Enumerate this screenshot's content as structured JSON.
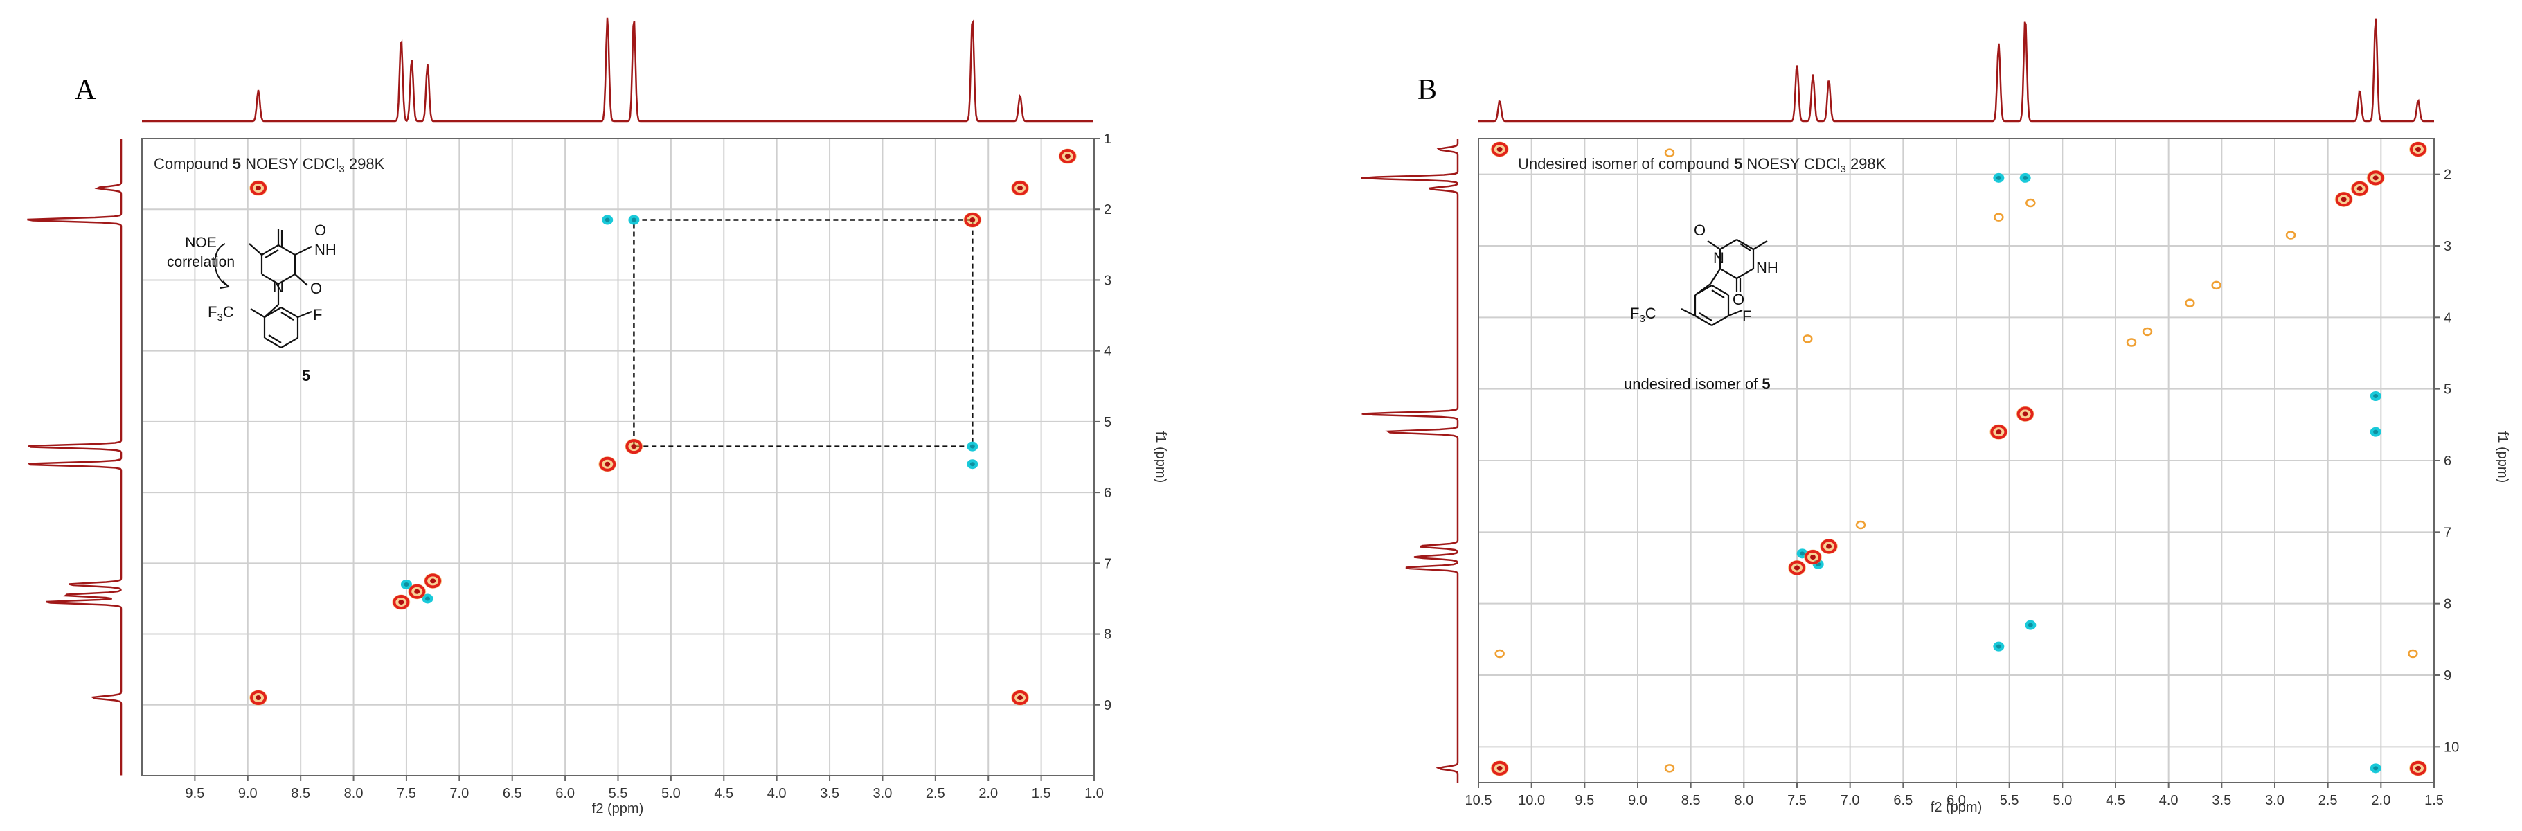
{
  "chart_data": [
    {
      "panel": "A",
      "type": "scatter",
      "title_prefix": "Compound ",
      "title_bold": "5",
      "title_suffix": " NOESY CDCl",
      "title_sub": "3",
      "title_tail": " 298K",
      "xlabel": "f2 (ppm)",
      "ylabel": "f1 (ppm)",
      "xlim": [
        10.0,
        1.0
      ],
      "ylim": [
        1.0,
        10.0
      ],
      "xticks": [
        "9.5",
        "9.0",
        "8.5",
        "8.0",
        "7.5",
        "7.0",
        "6.5",
        "6.0",
        "5.5",
        "5.0",
        "4.5",
        "4.0",
        "3.5",
        "3.0",
        "2.5",
        "2.0",
        "1.5",
        "1.0"
      ],
      "yticks": [
        "1",
        "2",
        "3",
        "4",
        "5",
        "6",
        "7",
        "8",
        "9"
      ],
      "structure_label": "5",
      "noe_label_1": "NOE",
      "noe_label_2": "correlation",
      "diagonal_peaks": [
        [
          8.9,
          1.7
        ],
        [
          8.9,
          8.9
        ],
        [
          1.7,
          1.7
        ],
        [
          1.7,
          8.9
        ],
        [
          1.25,
          1.25
        ],
        [
          2.15,
          2.15
        ],
        [
          5.35,
          5.35
        ],
        [
          5.6,
          5.6
        ],
        [
          7.25,
          7.25
        ],
        [
          7.4,
          7.4
        ],
        [
          7.55,
          7.55
        ]
      ],
      "cross_peaks": [
        [
          5.6,
          2.15
        ],
        [
          5.35,
          2.15
        ],
        [
          2.15,
          5.35
        ],
        [
          2.15,
          5.6
        ],
        [
          7.5,
          7.3
        ],
        [
          7.3,
          7.5
        ]
      ],
      "noe_box": [
        5.35,
        2.15,
        2.15,
        5.35
      ],
      "proj_peaks": [
        [
          8.9,
          0.3
        ],
        [
          7.55,
          0.8
        ],
        [
          7.45,
          0.6
        ],
        [
          7.3,
          0.55
        ],
        [
          5.6,
          1.0
        ],
        [
          5.35,
          1.0
        ],
        [
          2.15,
          1.0
        ],
        [
          1.7,
          0.25
        ]
      ]
    },
    {
      "panel": "B",
      "type": "scatter",
      "title_prefix": "Undesired isomer of compound ",
      "title_bold": "5",
      "title_suffix": " NOESY CDCl",
      "title_sub": "3",
      "title_tail": " 298K",
      "xlabel": "f2 (ppm)",
      "ylabel": "f1 (ppm)",
      "xlim": [
        10.5,
        1.5
      ],
      "ylim": [
        1.5,
        10.5
      ],
      "xticks": [
        "10.5",
        "10.0",
        "9.5",
        "9.0",
        "8.5",
        "8.0",
        "7.5",
        "7.0",
        "6.5",
        "6.0",
        "5.5",
        "5.0",
        "4.5",
        "4.0",
        "3.5",
        "3.0",
        "2.5",
        "2.0",
        "1.5"
      ],
      "yticks": [
        "2",
        "3",
        "4",
        "5",
        "6",
        "7",
        "8",
        "9",
        "10"
      ],
      "structure_label_prefix": "undesired isomer of ",
      "structure_label": "5",
      "diagonal_peaks": [
        [
          10.3,
          1.65
        ],
        [
          10.3,
          10.3
        ],
        [
          1.65,
          1.65
        ],
        [
          1.65,
          10.3
        ],
        [
          2.05,
          2.05
        ],
        [
          2.2,
          2.2
        ],
        [
          2.35,
          2.35
        ],
        [
          5.35,
          5.35
        ],
        [
          5.6,
          5.6
        ],
        [
          7.2,
          7.2
        ],
        [
          7.35,
          7.35
        ],
        [
          7.5,
          7.5
        ]
      ],
      "cross_peaks": [
        [
          5.6,
          2.05
        ],
        [
          5.35,
          2.05
        ],
        [
          2.05,
          5.1
        ],
        [
          2.05,
          5.6
        ],
        [
          2.05,
          10.3
        ],
        [
          5.3,
          8.3
        ],
        [
          5.6,
          8.6
        ],
        [
          7.45,
          7.3
        ],
        [
          7.3,
          7.45
        ]
      ],
      "minor_peaks": [
        [
          8.7,
          1.7
        ],
        [
          1.7,
          8.7
        ],
        [
          8.7,
          10.3
        ],
        [
          10.3,
          8.7
        ],
        [
          2.85,
          2.85
        ],
        [
          3.55,
          3.55
        ],
        [
          3.8,
          3.8
        ],
        [
          4.2,
          4.2
        ],
        [
          4.35,
          4.35
        ],
        [
          6.9,
          6.9
        ],
        [
          7.4,
          4.3
        ],
        [
          5.3,
          2.4
        ],
        [
          5.6,
          2.6
        ]
      ],
      "proj_peaks": [
        [
          10.3,
          0.2
        ],
        [
          7.5,
          0.55
        ],
        [
          7.35,
          0.45
        ],
        [
          7.2,
          0.4
        ],
        [
          5.6,
          0.75
        ],
        [
          5.35,
          1.0
        ],
        [
          2.2,
          0.3
        ],
        [
          2.05,
          1.0
        ],
        [
          1.65,
          0.2
        ]
      ]
    }
  ]
}
